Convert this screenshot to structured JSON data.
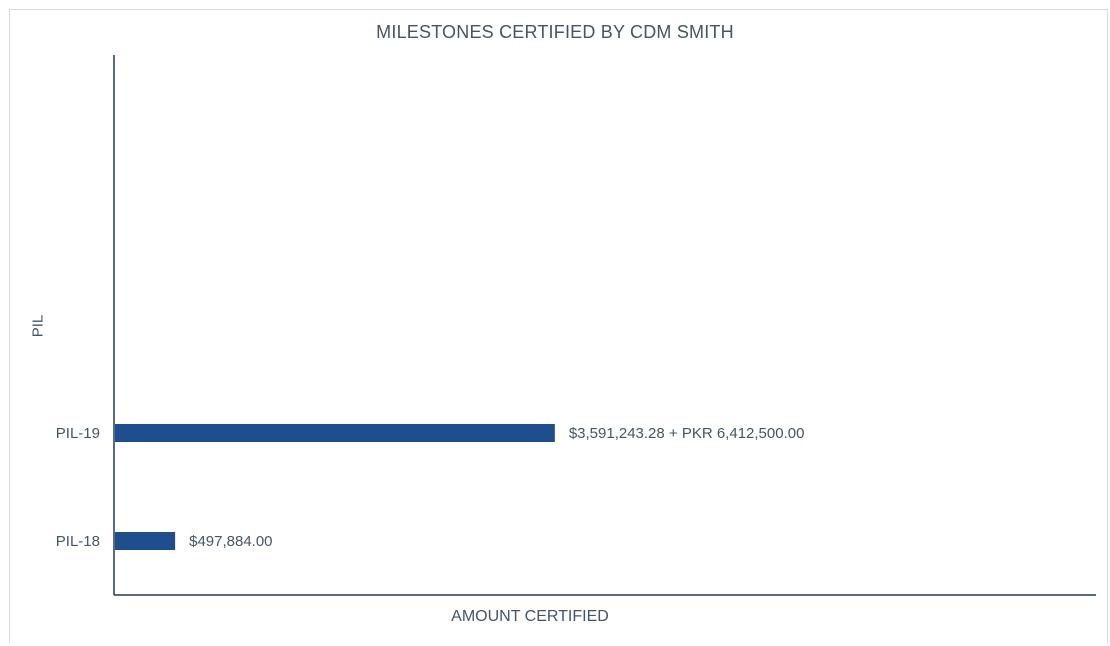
{
  "chart_data": {
    "type": "bar",
    "orientation": "horizontal",
    "title": "MILESTONES CERTIFIED BY CDM SMITH",
    "xlabel": "AMOUNT CERTIFIED",
    "ylabel": "PIL",
    "categories": [
      "PIL-18",
      "PIL-19"
    ],
    "values": [
      497884.0,
      3591243.28
    ],
    "data_labels": [
      "$497,884.00",
      "$3,591,243.28 + PKR 6,412,500.00"
    ],
    "xlim": [
      0,
      8000000
    ],
    "grid": false,
    "legend": "none",
    "bar_color": "#1f4e8c",
    "axis_color": "#1f3864"
  }
}
